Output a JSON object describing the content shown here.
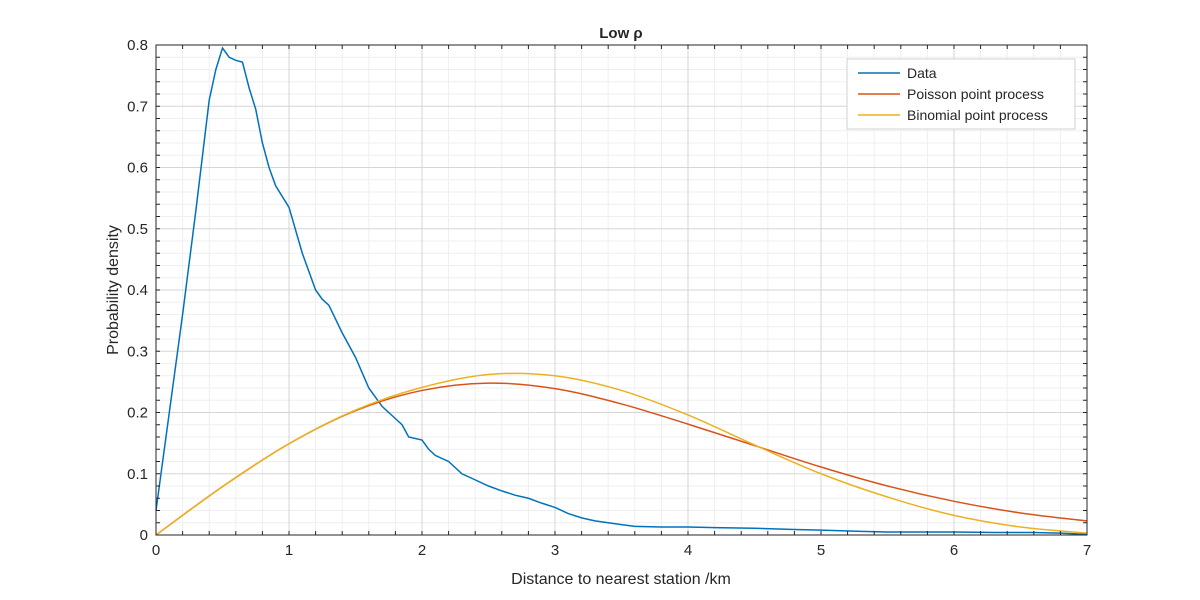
{
  "chart_data": {
    "type": "line",
    "title": "Low ρ",
    "xlabel": "Distance to nearest station /km",
    "ylabel": "Probability density",
    "xlim": [
      0,
      7
    ],
    "ylim": [
      0,
      0.8
    ],
    "xticks": [
      0,
      1,
      2,
      3,
      4,
      5,
      6,
      7
    ],
    "yticks": [
      0,
      0.1,
      0.2,
      0.3,
      0.4,
      0.5,
      0.6,
      0.7,
      0.8
    ],
    "xtick_labels": [
      "0",
      "1",
      "2",
      "3",
      "4",
      "5",
      "6",
      "7"
    ],
    "ytick_labels": [
      "0",
      "0.1",
      "0.2",
      "0.3",
      "0.4",
      "0.5",
      "0.6",
      "0.7",
      "0.8"
    ],
    "grid": "major and minor",
    "legend_position": "top-right",
    "series": [
      {
        "name": "Data",
        "color": "#0072BD",
        "smooth": false,
        "x": [
          0,
          0.1,
          0.2,
          0.3,
          0.35,
          0.4,
          0.45,
          0.5,
          0.55,
          0.6,
          0.65,
          0.7,
          0.75,
          0.8,
          0.85,
          0.9,
          1.0,
          1.1,
          1.2,
          1.25,
          1.3,
          1.4,
          1.5,
          1.6,
          1.7,
          1.8,
          1.85,
          1.9,
          2.0,
          2.05,
          2.1,
          2.2,
          2.3,
          2.4,
          2.5,
          2.6,
          2.7,
          2.8,
          2.9,
          3.0,
          3.1,
          3.2,
          3.3,
          3.4,
          3.5,
          3.6,
          3.8,
          4.0,
          4.2,
          4.5,
          4.8,
          5.0,
          5.3,
          5.5,
          5.8,
          6.0,
          6.3,
          6.6,
          6.8,
          7.0
        ],
        "y": [
          0.04,
          0.2,
          0.36,
          0.53,
          0.62,
          0.71,
          0.76,
          0.795,
          0.78,
          0.775,
          0.772,
          0.73,
          0.695,
          0.64,
          0.6,
          0.57,
          0.535,
          0.46,
          0.4,
          0.385,
          0.375,
          0.33,
          0.29,
          0.24,
          0.21,
          0.19,
          0.18,
          0.16,
          0.155,
          0.14,
          0.13,
          0.12,
          0.1,
          0.09,
          0.08,
          0.072,
          0.065,
          0.06,
          0.052,
          0.045,
          0.035,
          0.028,
          0.023,
          0.02,
          0.017,
          0.014,
          0.013,
          0.013,
          0.012,
          0.011,
          0.009,
          0.008,
          0.006,
          0.005,
          0.005,
          0.005,
          0.004,
          0.004,
          0.003,
          0.001
        ]
      },
      {
        "name": "Poisson point process",
        "color": "#D95319",
        "smooth": true,
        "x": [
          0,
          0.5,
          1,
          1.5,
          2,
          2.5,
          3,
          3.5,
          4,
          4.5,
          5,
          5.5,
          6,
          6.5,
          7
        ],
        "y": [
          0,
          0.079,
          0.149,
          0.203,
          0.236,
          0.248,
          0.239,
          0.214,
          0.181,
          0.146,
          0.111,
          0.08,
          0.055,
          0.036,
          0.023
        ]
      },
      {
        "name": "Binomial point process",
        "color": "#EDB120",
        "smooth": true,
        "x": [
          0,
          0.5,
          1,
          1.5,
          2,
          2.5,
          3,
          3.5,
          4,
          4.5,
          5,
          5.5,
          6,
          6.5,
          7
        ],
        "y": [
          0,
          0.079,
          0.149,
          0.204,
          0.241,
          0.262,
          0.26,
          0.236,
          0.196,
          0.147,
          0.1,
          0.062,
          0.032,
          0.013,
          0.003
        ]
      }
    ]
  }
}
